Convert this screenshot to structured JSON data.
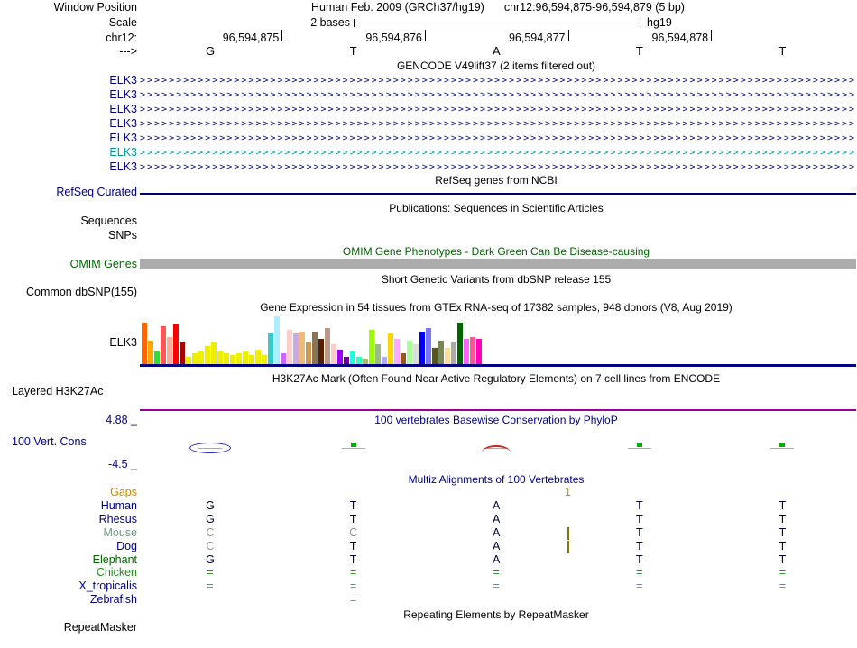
{
  "colors": {
    "navy": "#000080",
    "teal_transcript": "#009999",
    "omim_green": "#006400",
    "omim_bar_gray": "#ACACAC",
    "h3k27ac_purple": "#990099",
    "gtex_baseline_navy": "#000080"
  },
  "header": {
    "window_position_label": "Window Position",
    "assembly": "Human Feb. 2009 (GRCh37/hg19)",
    "position": "chr12:96,594,875-96,594,879 (5 bp)",
    "scale_label": "Scale",
    "scale_value": "2 bases",
    "scale_genome": "hg19",
    "chrom_label": "chr12:",
    "coords": [
      "96,594,875",
      "96,594,876",
      "96,594,877",
      "96,594,878"
    ],
    "strand_label": "--->",
    "bases": [
      "G",
      "T",
      "A",
      "T",
      "T"
    ]
  },
  "gencode": {
    "title": "GENCODE V49lift37 (2 items filtered out)",
    "transcripts": [
      {
        "label": "ELK3",
        "color": "#000080"
      },
      {
        "label": "ELK3",
        "color": "#000080"
      },
      {
        "label": "ELK3",
        "color": "#000080"
      },
      {
        "label": "ELK3",
        "color": "#000080"
      },
      {
        "label": "ELK3",
        "color": "#000080"
      },
      {
        "label": "ELK3",
        "color": "#009999"
      },
      {
        "label": "ELK3",
        "color": "#000080"
      }
    ]
  },
  "refseq": {
    "title": "RefSeq genes from NCBI",
    "label": "RefSeq Curated"
  },
  "publications": {
    "title": "Publications: Sequences in Scientific Articles",
    "sequences_label": "Sequences",
    "snps_label": "SNPs"
  },
  "omim": {
    "title": "OMIM Gene Phenotypes - Dark Green Can Be Disease-causing",
    "label": "OMIM Genes"
  },
  "dbsnp": {
    "title": "Short Genetic Variants from dbSNP release 155",
    "label": "Common dbSNP(155)"
  },
  "gtex": {
    "title": "Gene Expression in 54 tissues from GTEx RNA-seq of 17382 samples, 948 donors (V8, Aug 2019)",
    "label": "ELK3",
    "bars": [
      {
        "v": 46,
        "c": "#FF6600"
      },
      {
        "v": 26,
        "c": "#FFAA00"
      },
      {
        "v": 14,
        "c": "#33DD33"
      },
      {
        "v": 42,
        "c": "#FF5555"
      },
      {
        "v": 30,
        "c": "#FFAA99"
      },
      {
        "v": 44,
        "c": "#FF0000"
      },
      {
        "v": 24,
        "c": "#AA0000"
      },
      {
        "v": 8,
        "c": "#EEEE00"
      },
      {
        "v": 12,
        "c": "#EEEE00"
      },
      {
        "v": 14,
        "c": "#EEEE00"
      },
      {
        "v": 20,
        "c": "#EEEE00"
      },
      {
        "v": 24,
        "c": "#EEEE00"
      },
      {
        "v": 14,
        "c": "#EEEE00"
      },
      {
        "v": 12,
        "c": "#EEEE00"
      },
      {
        "v": 10,
        "c": "#EEEE00"
      },
      {
        "v": 12,
        "c": "#EEEE00"
      },
      {
        "v": 14,
        "c": "#EEEE00"
      },
      {
        "v": 10,
        "c": "#EEEE00"
      },
      {
        "v": 16,
        "c": "#EEEE00"
      },
      {
        "v": 10,
        "c": "#EEEE00"
      },
      {
        "v": 34,
        "c": "#33CCCC"
      },
      {
        "v": 53,
        "c": "#AAEEFF"
      },
      {
        "v": 12,
        "c": "#CC66FF"
      },
      {
        "v": 38,
        "c": "#FFCCCC"
      },
      {
        "v": 34,
        "c": "#CCAADD"
      },
      {
        "v": 36,
        "c": "#EEBB77"
      },
      {
        "v": 24,
        "c": "#CC9955"
      },
      {
        "v": 36,
        "c": "#8B7355"
      },
      {
        "v": 28,
        "c": "#552200"
      },
      {
        "v": 40,
        "c": "#BB9988"
      },
      {
        "v": 22,
        "c": "#FFCCCC"
      },
      {
        "v": 16,
        "c": "#9900FF"
      },
      {
        "v": 8,
        "c": "#660099"
      },
      {
        "v": 14,
        "c": "#22FFDD"
      },
      {
        "v": 8,
        "c": "#33FFC2"
      },
      {
        "v": 6,
        "c": "#AABB66"
      },
      {
        "v": 38,
        "c": "#99FF00"
      },
      {
        "v": 22,
        "c": "#99BB88"
      },
      {
        "v": 8,
        "c": "#AAAAFF"
      },
      {
        "v": 34,
        "c": "#FFD700"
      },
      {
        "v": 28,
        "c": "#FFAAFF"
      },
      {
        "v": 12,
        "c": "#995522"
      },
      {
        "v": 26,
        "c": "#AAFF99"
      },
      {
        "v": 22,
        "c": "#DDDDDD"
      },
      {
        "v": 36,
        "c": "#0000FF"
      },
      {
        "v": 40,
        "c": "#7777FF"
      },
      {
        "v": 18,
        "c": "#555522"
      },
      {
        "v": 26,
        "c": "#778855"
      },
      {
        "v": 18,
        "c": "#FFDD99"
      },
      {
        "v": 24,
        "c": "#AAAAAA"
      },
      {
        "v": 46,
        "c": "#006600"
      },
      {
        "v": 28,
        "c": "#FF66FF"
      },
      {
        "v": 30,
        "c": "#FF5599"
      },
      {
        "v": 28,
        "c": "#FF00BB"
      }
    ]
  },
  "h3k27ac": {
    "title": "H3K27Ac Mark (Often Found Near Active Regulatory Elements) on 7 cell lines from ENCODE",
    "label": "Layered H3K27Ac"
  },
  "conservation": {
    "title": "100 vertebrates Basewise Conservation by PhyloP",
    "label": "100 Vert. Cons",
    "max_label": "4.88 _",
    "min_label": "-4.5 _",
    "marks": [
      {
        "base": 0,
        "type": "ellipse",
        "color": "#2222CC"
      },
      {
        "base": 1,
        "type": "tick",
        "color": "#00B000"
      },
      {
        "base": 2,
        "type": "arc",
        "color": "#CC2222"
      },
      {
        "base": 3,
        "type": "tick",
        "color": "#00B000"
      },
      {
        "base": 4,
        "type": "tick",
        "color": "#00B000"
      }
    ]
  },
  "multiz": {
    "title": "Multiz Alignments of 100 Vertebrates",
    "default_base_color": "#000033",
    "insert_color": "#8B7500",
    "gaps": {
      "label": "Gaps",
      "value": "1",
      "color": "#CC8800"
    },
    "species": [
      {
        "name": "Human",
        "name_color": "#00008B",
        "cells": [
          {
            "t": "G"
          },
          {
            "t": "T"
          },
          {
            "t": "A"
          },
          {
            "t": "T"
          },
          {
            "t": "T"
          }
        ]
      },
      {
        "name": "Rhesus",
        "name_color": "#00008B",
        "cells": [
          {
            "t": "G"
          },
          {
            "t": "T"
          },
          {
            "t": "A"
          },
          {
            "t": "T"
          },
          {
            "t": "T"
          }
        ]
      },
      {
        "name": "Mouse",
        "name_color": "#6F9A85",
        "insert": true,
        "cells": [
          {
            "t": "C",
            "c": "#999999"
          },
          {
            "t": "C",
            "c": "#999999"
          },
          {
            "t": "A"
          },
          {
            "t": "T"
          },
          {
            "t": "T"
          }
        ]
      },
      {
        "name": "Dog",
        "name_color": "#00008B",
        "insert": true,
        "cells": [
          {
            "t": "C",
            "c": "#999999"
          },
          {
            "t": "T"
          },
          {
            "t": "A"
          },
          {
            "t": "T"
          },
          {
            "t": "T"
          }
        ]
      },
      {
        "name": "Elephant",
        "name_color": "#006400",
        "cells": [
          {
            "t": "G"
          },
          {
            "t": "T"
          },
          {
            "t": "A"
          },
          {
            "t": "T"
          },
          {
            "t": "T"
          }
        ]
      },
      {
        "name": "Chicken",
        "name_color": "#228B22",
        "cells": [
          {
            "t": "=",
            "c": "#228B22"
          },
          {
            "t": "=",
            "c": "#228B22"
          },
          {
            "t": "=",
            "c": "#228B22"
          },
          {
            "t": "=",
            "c": "#228B22"
          },
          {
            "t": "=",
            "c": "#228B22"
          }
        ]
      },
      {
        "name": "X_tropicalis",
        "name_color": "#000080",
        "cells": [
          {
            "t": "=",
            "c": "#708090"
          },
          {
            "t": "=",
            "c": "#708090"
          },
          {
            "t": "=",
            "c": "#708090"
          },
          {
            "t": "=",
            "c": "#708090"
          },
          {
            "t": "=",
            "c": "#708090"
          }
        ]
      },
      {
        "name": "Zebrafish",
        "name_color": "#000080",
        "cells": [
          {
            "t": ""
          },
          {
            "t": "=",
            "c": "#708090"
          },
          {
            "t": ""
          },
          {
            "t": ""
          },
          {
            "t": ""
          }
        ]
      }
    ]
  },
  "repeatmasker": {
    "title": "Repeating Elements by RepeatMasker",
    "label": "RepeatMasker"
  }
}
